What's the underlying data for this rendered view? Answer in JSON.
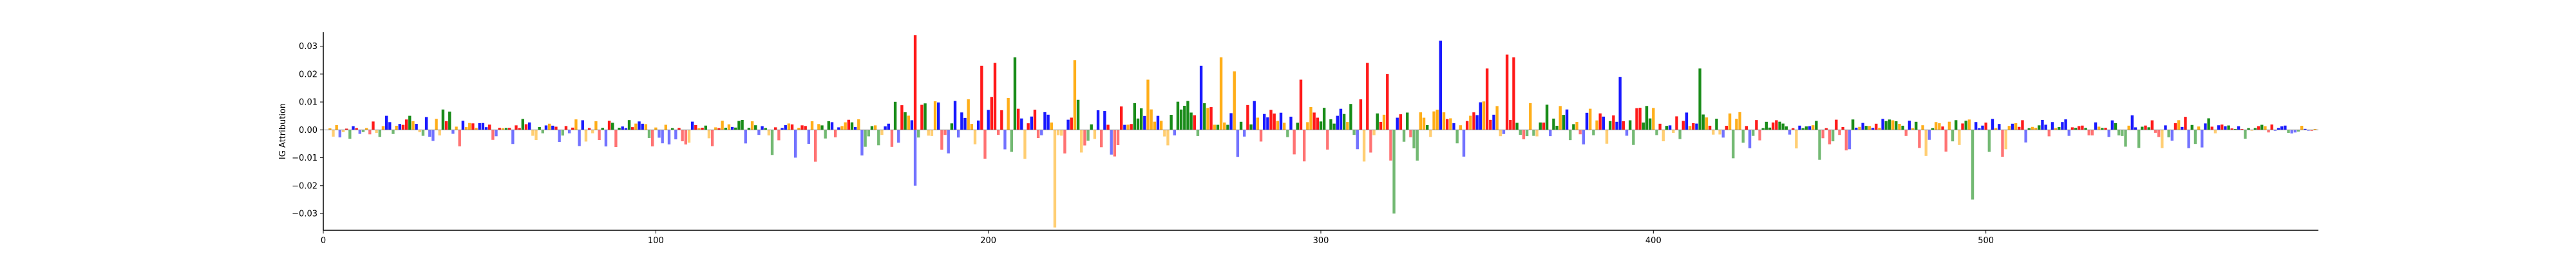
{
  "chart_data": {
    "type": "sequence-logo attribution",
    "title": "",
    "xlabel": "",
    "ylabel": "IG Attribution",
    "xlim": [
      0,
      600
    ],
    "ylim": [
      -0.036,
      0.035
    ],
    "x_ticks": [
      0,
      100,
      200,
      300,
      400,
      500
    ],
    "x_tick_labels": [
      "0",
      "100",
      "200",
      "300",
      "400",
      "500"
    ],
    "y_ticks": [
      -0.03,
      -0.02,
      -0.01,
      0.0,
      0.01,
      0.02,
      0.03
    ],
    "y_tick_labels": [
      "−0.03",
      "−0.02",
      "−0.01",
      "0.00",
      "0.01",
      "0.02",
      "0.03"
    ],
    "baseline": 0.0,
    "grid": false,
    "base_colors": {
      "A": "#008000",
      "C": "#0000ff",
      "G": "#ffa500",
      "T": "#ff0000"
    },
    "notable_positions": [
      {
        "x": 178,
        "base": "T",
        "value": 0.034
      },
      {
        "x": 198,
        "base": "T",
        "value": 0.023
      },
      {
        "x": 202,
        "base": "T",
        "value": 0.024
      },
      {
        "x": 208,
        "base": "A",
        "value": 0.026
      },
      {
        "x": 220,
        "base": "G",
        "value": -0.035
      },
      {
        "x": 226,
        "base": "G",
        "value": 0.025
      },
      {
        "x": 248,
        "base": "G",
        "value": 0.018
      },
      {
        "x": 264,
        "base": "C",
        "value": 0.023
      },
      {
        "x": 270,
        "base": "G",
        "value": 0.026
      },
      {
        "x": 274,
        "base": "G",
        "value": 0.021
      },
      {
        "x": 294,
        "base": "T",
        "value": 0.018
      },
      {
        "x": 314,
        "base": "T",
        "value": 0.024
      },
      {
        "x": 320,
        "base": "T",
        "value": 0.02
      },
      {
        "x": 322,
        "base": "A",
        "value": -0.03
      },
      {
        "x": 336,
        "base": "C",
        "value": 0.032
      },
      {
        "x": 350,
        "base": "T",
        "value": 0.022
      },
      {
        "x": 356,
        "base": "T",
        "value": 0.027
      },
      {
        "x": 358,
        "base": "T",
        "value": 0.026
      },
      {
        "x": 390,
        "base": "C",
        "value": 0.019
      },
      {
        "x": 414,
        "base": "A",
        "value": 0.022
      },
      {
        "x": 496,
        "base": "A",
        "value": -0.025
      },
      {
        "x": 178,
        "base": "C",
        "value": -0.02
      }
    ]
  }
}
